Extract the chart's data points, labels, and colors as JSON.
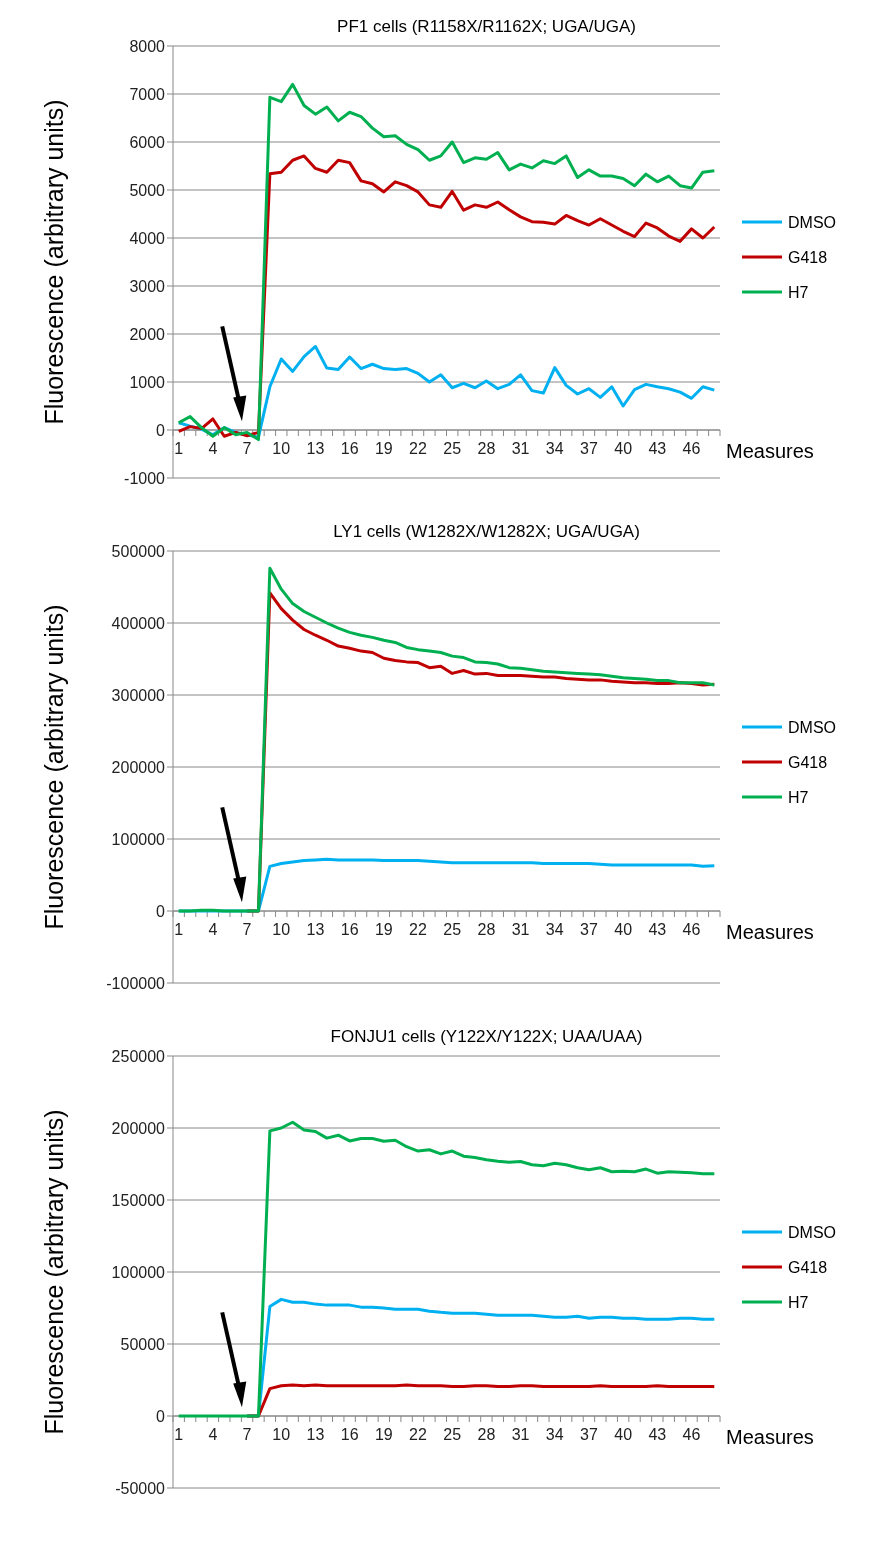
{
  "chart_data": [
    {
      "type": "line",
      "title": "PF1 cells (R1158X/R1162X; UGA/UGA)",
      "xlabel": "Measures",
      "ylabel": "Fluorescence (arbitrary units)",
      "categories": [
        "1",
        null,
        null,
        "4",
        null,
        null,
        "7",
        null,
        null,
        "10",
        null,
        null,
        "13",
        null,
        null,
        "16",
        null,
        null,
        "19",
        null,
        null,
        "22",
        null,
        null,
        "25",
        null,
        null,
        "28",
        null,
        null,
        "31",
        null,
        null,
        "34",
        null,
        null,
        "37",
        null,
        null,
        "40",
        null,
        null,
        "43",
        null,
        null,
        "46",
        null,
        null
      ],
      "ylim": [
        -1000,
        8000
      ],
      "yticks": [
        -1000,
        0,
        1000,
        2000,
        3000,
        4000,
        5000,
        6000,
        7000,
        8000
      ],
      "grid": "y",
      "legend": "right",
      "marker": "none",
      "line_style": "solid",
      "series": [
        {
          "name": "DMSO",
          "color": "#00b0f0",
          "values": [
            150,
            80,
            20,
            -100,
            50,
            -50,
            -100,
            -150,
            900,
            1480,
            1220,
            1530,
            1740,
            1290,
            1260,
            1520,
            1280,
            1370,
            1280,
            1260,
            1280,
            1180,
            1000,
            1150,
            880,
            970,
            880,
            1020,
            860,
            950,
            1150,
            820,
            770,
            1300,
            930,
            750,
            860,
            680,
            900,
            500,
            840,
            950,
            900,
            860,
            790,
            660,
            900,
            830
          ]
        },
        {
          "name": "G418",
          "color": "#c00000",
          "values": [
            -30,
            70,
            30,
            230,
            -130,
            -50,
            -120,
            -50,
            5340,
            5370,
            5620,
            5710,
            5450,
            5370,
            5620,
            5570,
            5190,
            5130,
            4960,
            5170,
            5090,
            4960,
            4690,
            4640,
            4970,
            4580,
            4690,
            4640,
            4750,
            4590,
            4440,
            4340,
            4330,
            4290,
            4470,
            4360,
            4270,
            4400,
            4270,
            4140,
            4030,
            4310,
            4210,
            4040,
            3930,
            4190,
            4000,
            4230
          ]
        },
        {
          "name": "H7",
          "color": "#00b050",
          "values": [
            150,
            280,
            50,
            -130,
            50,
            -100,
            -50,
            -200,
            6930,
            6840,
            7200,
            6760,
            6580,
            6730,
            6440,
            6620,
            6530,
            6290,
            6110,
            6130,
            5950,
            5840,
            5620,
            5710,
            6000,
            5570,
            5670,
            5640,
            5780,
            5420,
            5540,
            5460,
            5610,
            5550,
            5710,
            5260,
            5420,
            5290,
            5290,
            5240,
            5090,
            5330,
            5170,
            5290,
            5090,
            5040,
            5370,
            5400
          ]
        }
      ]
    },
    {
      "type": "line",
      "title": "LY1 cells (W1282X/W1282X; UGA/UGA)",
      "xlabel": "Measures",
      "ylabel": "Fluorescence (arbitrary units)",
      "categories": [
        "1",
        null,
        null,
        "4",
        null,
        null,
        "7",
        null,
        null,
        "10",
        null,
        null,
        "13",
        null,
        null,
        "16",
        null,
        null,
        "19",
        null,
        null,
        "22",
        null,
        null,
        "25",
        null,
        null,
        "28",
        null,
        null,
        "31",
        null,
        null,
        "34",
        null,
        null,
        "37",
        null,
        null,
        "40",
        null,
        null,
        "43",
        null,
        null,
        "46",
        null,
        null
      ],
      "ylim": [
        -100000,
        500000
      ],
      "yticks": [
        -100000,
        0,
        100000,
        200000,
        300000,
        400000,
        500000
      ],
      "grid": "y",
      "legend": "right",
      "marker": "none",
      "line_style": "solid",
      "series": [
        {
          "name": "DMSO",
          "color": "#00b0f0",
          "values": [
            0,
            0,
            0,
            0,
            0,
            0,
            0,
            0,
            62000,
            66000,
            68000,
            70000,
            71000,
            72000,
            71000,
            71000,
            71000,
            71000,
            70000,
            70000,
            70000,
            70000,
            69000,
            68000,
            67000,
            67000,
            67000,
            67000,
            67000,
            67000,
            67000,
            67000,
            66000,
            66000,
            66000,
            66000,
            66000,
            65000,
            64000,
            64000,
            64000,
            64000,
            64000,
            64000,
            64000,
            64000,
            62000,
            63000
          ]
        },
        {
          "name": "G418",
          "color": "#c00000",
          "values": [
            null,
            null,
            null,
            null,
            null,
            null,
            0,
            0,
            442000,
            420000,
            404000,
            391000,
            383000,
            376000,
            368000,
            365000,
            361000,
            359000,
            351000,
            348000,
            346000,
            345000,
            338000,
            340000,
            330000,
            334000,
            329000,
            330000,
            327000,
            327000,
            327000,
            326000,
            325000,
            325000,
            323000,
            322000,
            321000,
            321000,
            319000,
            318000,
            317000,
            317000,
            316000,
            316000,
            317000,
            316000,
            314000,
            315000
          ]
        },
        {
          "name": "H7",
          "color": "#00b050",
          "values": [
            0,
            0,
            1000,
            1000,
            0,
            0,
            0,
            0,
            476000,
            447000,
            427000,
            416000,
            408000,
            400000,
            393000,
            387000,
            383000,
            380000,
            376000,
            373000,
            366000,
            363000,
            361000,
            359000,
            354000,
            352000,
            346000,
            345000,
            343000,
            338000,
            337000,
            335000,
            333000,
            332000,
            331000,
            330000,
            329000,
            328000,
            326000,
            324000,
            323000,
            322000,
            320000,
            320000,
            317000,
            317000,
            317000,
            314000
          ]
        }
      ]
    },
    {
      "type": "line",
      "title": "FONJU1 cells (Y122X/Y122X; UAA/UAA)",
      "xlabel": "Measures",
      "ylabel": "Fluorescence (arbitrary units)",
      "categories": [
        "1",
        null,
        null,
        "4",
        null,
        null,
        "7",
        null,
        null,
        "10",
        null,
        null,
        "13",
        null,
        null,
        "16",
        null,
        null,
        "19",
        null,
        null,
        "22",
        null,
        null,
        "25",
        null,
        null,
        "28",
        null,
        null,
        "31",
        null,
        null,
        "34",
        null,
        null,
        "37",
        null,
        null,
        "40",
        null,
        null,
        "43",
        null,
        null,
        "46",
        null,
        null
      ],
      "ylim": [
        -50000,
        250000
      ],
      "yticks": [
        -50000,
        0,
        50000,
        100000,
        150000,
        200000,
        250000
      ],
      "grid": "y",
      "legend": "right",
      "marker": "none",
      "line_style": "solid",
      "series": [
        {
          "name": "DMSO",
          "color": "#00b0f0",
          "values": [
            null,
            null,
            null,
            null,
            null,
            null,
            0,
            0,
            76000,
            81000,
            79000,
            79000,
            77700,
            77000,
            77000,
            77000,
            75600,
            75600,
            75000,
            74200,
            74200,
            74200,
            72800,
            72000,
            71400,
            71400,
            71400,
            70700,
            70000,
            70000,
            70000,
            70000,
            69300,
            68600,
            68600,
            69300,
            67900,
            68600,
            68600,
            67900,
            67900,
            67200,
            67200,
            67200,
            67900,
            67900,
            67200,
            67200
          ]
        },
        {
          "name": "G418",
          "color": "#c00000",
          "values": [
            null,
            null,
            null,
            null,
            null,
            null,
            0,
            0,
            19000,
            21000,
            21500,
            21000,
            21500,
            21000,
            21000,
            21000,
            21000,
            21000,
            21000,
            21000,
            21500,
            21000,
            21000,
            21000,
            20500,
            20500,
            21000,
            21000,
            20500,
            20500,
            21000,
            21000,
            20500,
            20500,
            20500,
            20500,
            20500,
            21000,
            20500,
            20500,
            20500,
            20500,
            21000,
            20500,
            20500,
            20500,
            20500,
            20500
          ]
        },
        {
          "name": "H7",
          "color": "#00b050",
          "values": [
            0,
            0,
            0,
            0,
            0,
            0,
            0,
            0,
            198000,
            200000,
            204000,
            198600,
            197600,
            193000,
            195000,
            191000,
            192700,
            192700,
            190800,
            191500,
            187000,
            184000,
            184900,
            182000,
            184000,
            180400,
            179500,
            178000,
            176900,
            176200,
            176700,
            174500,
            173800,
            175500,
            174500,
            172400,
            171000,
            172400,
            169600,
            170000,
            169600,
            171500,
            168600,
            169600,
            169300,
            168900,
            168200,
            168200
          ]
        }
      ]
    }
  ]
}
